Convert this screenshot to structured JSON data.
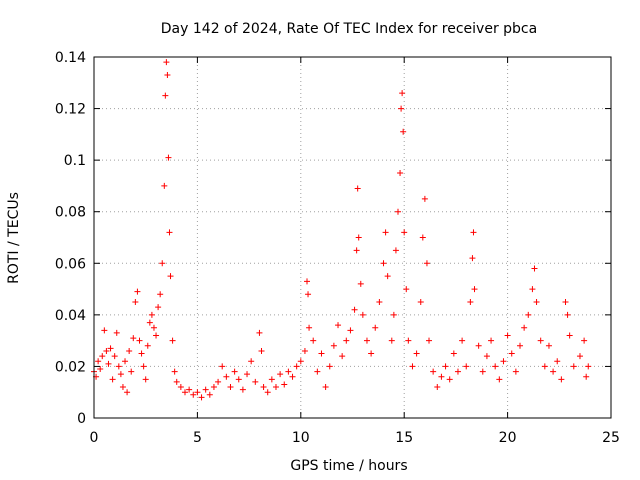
{
  "chart_data": {
    "type": "scatter",
    "title": "Day 142 of 2024, Rate Of TEC Index for receiver pbca",
    "xlabel": "GPS time / hours",
    "ylabel": "ROTI / TECUs",
    "xlim": [
      0,
      25
    ],
    "ylim": [
      0,
      0.14
    ],
    "xticks": [
      0,
      5,
      10,
      15,
      20,
      25
    ],
    "xtick_labels": [
      "0",
      "5",
      "10",
      "15",
      "20",
      "25"
    ],
    "yticks": [
      0,
      0.02,
      0.04,
      0.06,
      0.08,
      0.1,
      0.12,
      0.14
    ],
    "ytick_labels": [
      "0",
      "0.02",
      "0.04",
      "0.06",
      "0.08",
      "0.1",
      "0.12",
      "0.14"
    ],
    "grid": true,
    "marker": "+",
    "color": "#ff0000",
    "series": [
      {
        "name": "ROTI",
        "points": [
          [
            0.0,
            0.018
          ],
          [
            0.1,
            0.016
          ],
          [
            0.2,
            0.022
          ],
          [
            0.3,
            0.019
          ],
          [
            0.4,
            0.024
          ],
          [
            0.5,
            0.034
          ],
          [
            0.6,
            0.026
          ],
          [
            0.7,
            0.021
          ],
          [
            0.8,
            0.027
          ],
          [
            0.9,
            0.015
          ],
          [
            1.0,
            0.024
          ],
          [
            1.1,
            0.033
          ],
          [
            1.2,
            0.02
          ],
          [
            1.3,
            0.017
          ],
          [
            1.4,
            0.012
          ],
          [
            1.5,
            0.022
          ],
          [
            1.6,
            0.01
          ],
          [
            1.7,
            0.026
          ],
          [
            1.8,
            0.018
          ],
          [
            1.9,
            0.031
          ],
          [
            2.0,
            0.045
          ],
          [
            2.1,
            0.049
          ],
          [
            2.2,
            0.03
          ],
          [
            2.3,
            0.025
          ],
          [
            2.4,
            0.02
          ],
          [
            2.5,
            0.015
          ],
          [
            2.6,
            0.028
          ],
          [
            2.7,
            0.037
          ],
          [
            2.8,
            0.04
          ],
          [
            2.9,
            0.035
          ],
          [
            3.0,
            0.032
          ],
          [
            3.1,
            0.043
          ],
          [
            3.2,
            0.048
          ],
          [
            3.3,
            0.06
          ],
          [
            3.4,
            0.09
          ],
          [
            3.45,
            0.125
          ],
          [
            3.5,
            0.138
          ],
          [
            3.55,
            0.133
          ],
          [
            3.6,
            0.101
          ],
          [
            3.65,
            0.072
          ],
          [
            3.7,
            0.055
          ],
          [
            3.8,
            0.03
          ],
          [
            3.9,
            0.018
          ],
          [
            4.0,
            0.014
          ],
          [
            4.2,
            0.012
          ],
          [
            4.4,
            0.01
          ],
          [
            4.6,
            0.011
          ],
          [
            4.8,
            0.009
          ],
          [
            5.0,
            0.01
          ],
          [
            5.2,
            0.008
          ],
          [
            5.4,
            0.011
          ],
          [
            5.6,
            0.009
          ],
          [
            5.8,
            0.012
          ],
          [
            6.0,
            0.014
          ],
          [
            6.2,
            0.02
          ],
          [
            6.4,
            0.016
          ],
          [
            6.6,
            0.012
          ],
          [
            6.8,
            0.018
          ],
          [
            7.0,
            0.015
          ],
          [
            7.2,
            0.011
          ],
          [
            7.4,
            0.017
          ],
          [
            7.6,
            0.022
          ],
          [
            7.8,
            0.014
          ],
          [
            8.0,
            0.033
          ],
          [
            8.1,
            0.026
          ],
          [
            8.2,
            0.012
          ],
          [
            8.4,
            0.01
          ],
          [
            8.6,
            0.015
          ],
          [
            8.8,
            0.012
          ],
          [
            9.0,
            0.017
          ],
          [
            9.2,
            0.013
          ],
          [
            9.4,
            0.018
          ],
          [
            9.6,
            0.016
          ],
          [
            9.8,
            0.02
          ],
          [
            10.0,
            0.022
          ],
          [
            10.2,
            0.026
          ],
          [
            10.3,
            0.053
          ],
          [
            10.35,
            0.048
          ],
          [
            10.4,
            0.035
          ],
          [
            10.6,
            0.03
          ],
          [
            10.8,
            0.018
          ],
          [
            11.0,
            0.025
          ],
          [
            11.2,
            0.012
          ],
          [
            11.4,
            0.02
          ],
          [
            11.6,
            0.028
          ],
          [
            11.8,
            0.036
          ],
          [
            12.0,
            0.024
          ],
          [
            12.2,
            0.03
          ],
          [
            12.4,
            0.034
          ],
          [
            12.6,
            0.042
          ],
          [
            12.7,
            0.065
          ],
          [
            12.75,
            0.089
          ],
          [
            12.8,
            0.07
          ],
          [
            12.9,
            0.052
          ],
          [
            13.0,
            0.04
          ],
          [
            13.2,
            0.03
          ],
          [
            13.4,
            0.025
          ],
          [
            13.6,
            0.035
          ],
          [
            13.8,
            0.045
          ],
          [
            14.0,
            0.06
          ],
          [
            14.1,
            0.072
          ],
          [
            14.2,
            0.055
          ],
          [
            14.4,
            0.03
          ],
          [
            14.5,
            0.04
          ],
          [
            14.6,
            0.065
          ],
          [
            14.7,
            0.08
          ],
          [
            14.8,
            0.095
          ],
          [
            14.85,
            0.12
          ],
          [
            14.9,
            0.126
          ],
          [
            14.95,
            0.111
          ],
          [
            15.0,
            0.072
          ],
          [
            15.1,
            0.05
          ],
          [
            15.2,
            0.03
          ],
          [
            15.4,
            0.02
          ],
          [
            15.6,
            0.025
          ],
          [
            15.8,
            0.045
          ],
          [
            15.9,
            0.07
          ],
          [
            16.0,
            0.085
          ],
          [
            16.1,
            0.06
          ],
          [
            16.2,
            0.03
          ],
          [
            16.4,
            0.018
          ],
          [
            16.6,
            0.012
          ],
          [
            16.8,
            0.016
          ],
          [
            17.0,
            0.02
          ],
          [
            17.2,
            0.015
          ],
          [
            17.4,
            0.025
          ],
          [
            17.6,
            0.018
          ],
          [
            17.8,
            0.03
          ],
          [
            18.0,
            0.02
          ],
          [
            18.2,
            0.045
          ],
          [
            18.3,
            0.062
          ],
          [
            18.35,
            0.072
          ],
          [
            18.4,
            0.05
          ],
          [
            18.6,
            0.028
          ],
          [
            18.8,
            0.018
          ],
          [
            19.0,
            0.024
          ],
          [
            19.2,
            0.03
          ],
          [
            19.4,
            0.02
          ],
          [
            19.6,
            0.015
          ],
          [
            19.8,
            0.022
          ],
          [
            20.0,
            0.032
          ],
          [
            20.2,
            0.025
          ],
          [
            20.4,
            0.018
          ],
          [
            20.6,
            0.028
          ],
          [
            20.8,
            0.035
          ],
          [
            21.0,
            0.04
          ],
          [
            21.2,
            0.05
          ],
          [
            21.3,
            0.058
          ],
          [
            21.4,
            0.045
          ],
          [
            21.6,
            0.03
          ],
          [
            21.8,
            0.02
          ],
          [
            22.0,
            0.028
          ],
          [
            22.2,
            0.018
          ],
          [
            22.4,
            0.022
          ],
          [
            22.6,
            0.015
          ],
          [
            22.8,
            0.045
          ],
          [
            22.9,
            0.04
          ],
          [
            23.0,
            0.032
          ],
          [
            23.2,
            0.02
          ],
          [
            23.5,
            0.024
          ],
          [
            23.7,
            0.03
          ],
          [
            23.8,
            0.016
          ],
          [
            23.9,
            0.02
          ]
        ]
      }
    ]
  }
}
